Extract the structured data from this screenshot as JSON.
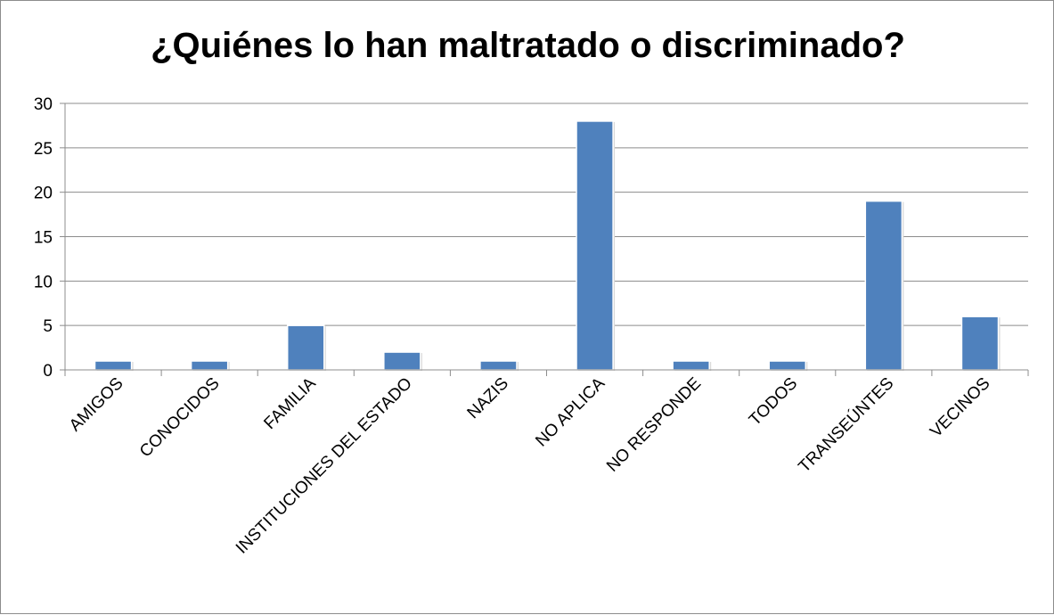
{
  "chart_data": {
    "type": "bar",
    "title": "¿Quiénes lo han maltratado o discriminado?",
    "categories": [
      "AMIGOS",
      "CONOCIDOS",
      "FAMILIA",
      "INSTITUCIONES DEL ESTADO",
      "NAZIS",
      "NO APLICA",
      "NO RESPONDE",
      "TODOS",
      "TRANSEÚNTES",
      "VECINOS"
    ],
    "values": [
      1,
      1,
      5,
      2,
      1,
      28,
      1,
      1,
      19,
      6
    ],
    "ylim": [
      0,
      30
    ],
    "yticks": [
      0,
      5,
      10,
      15,
      20,
      25,
      30
    ],
    "grid": true,
    "legend": "none",
    "bar_color": "#4f81bd",
    "grid_color": "#8c8c8c"
  }
}
